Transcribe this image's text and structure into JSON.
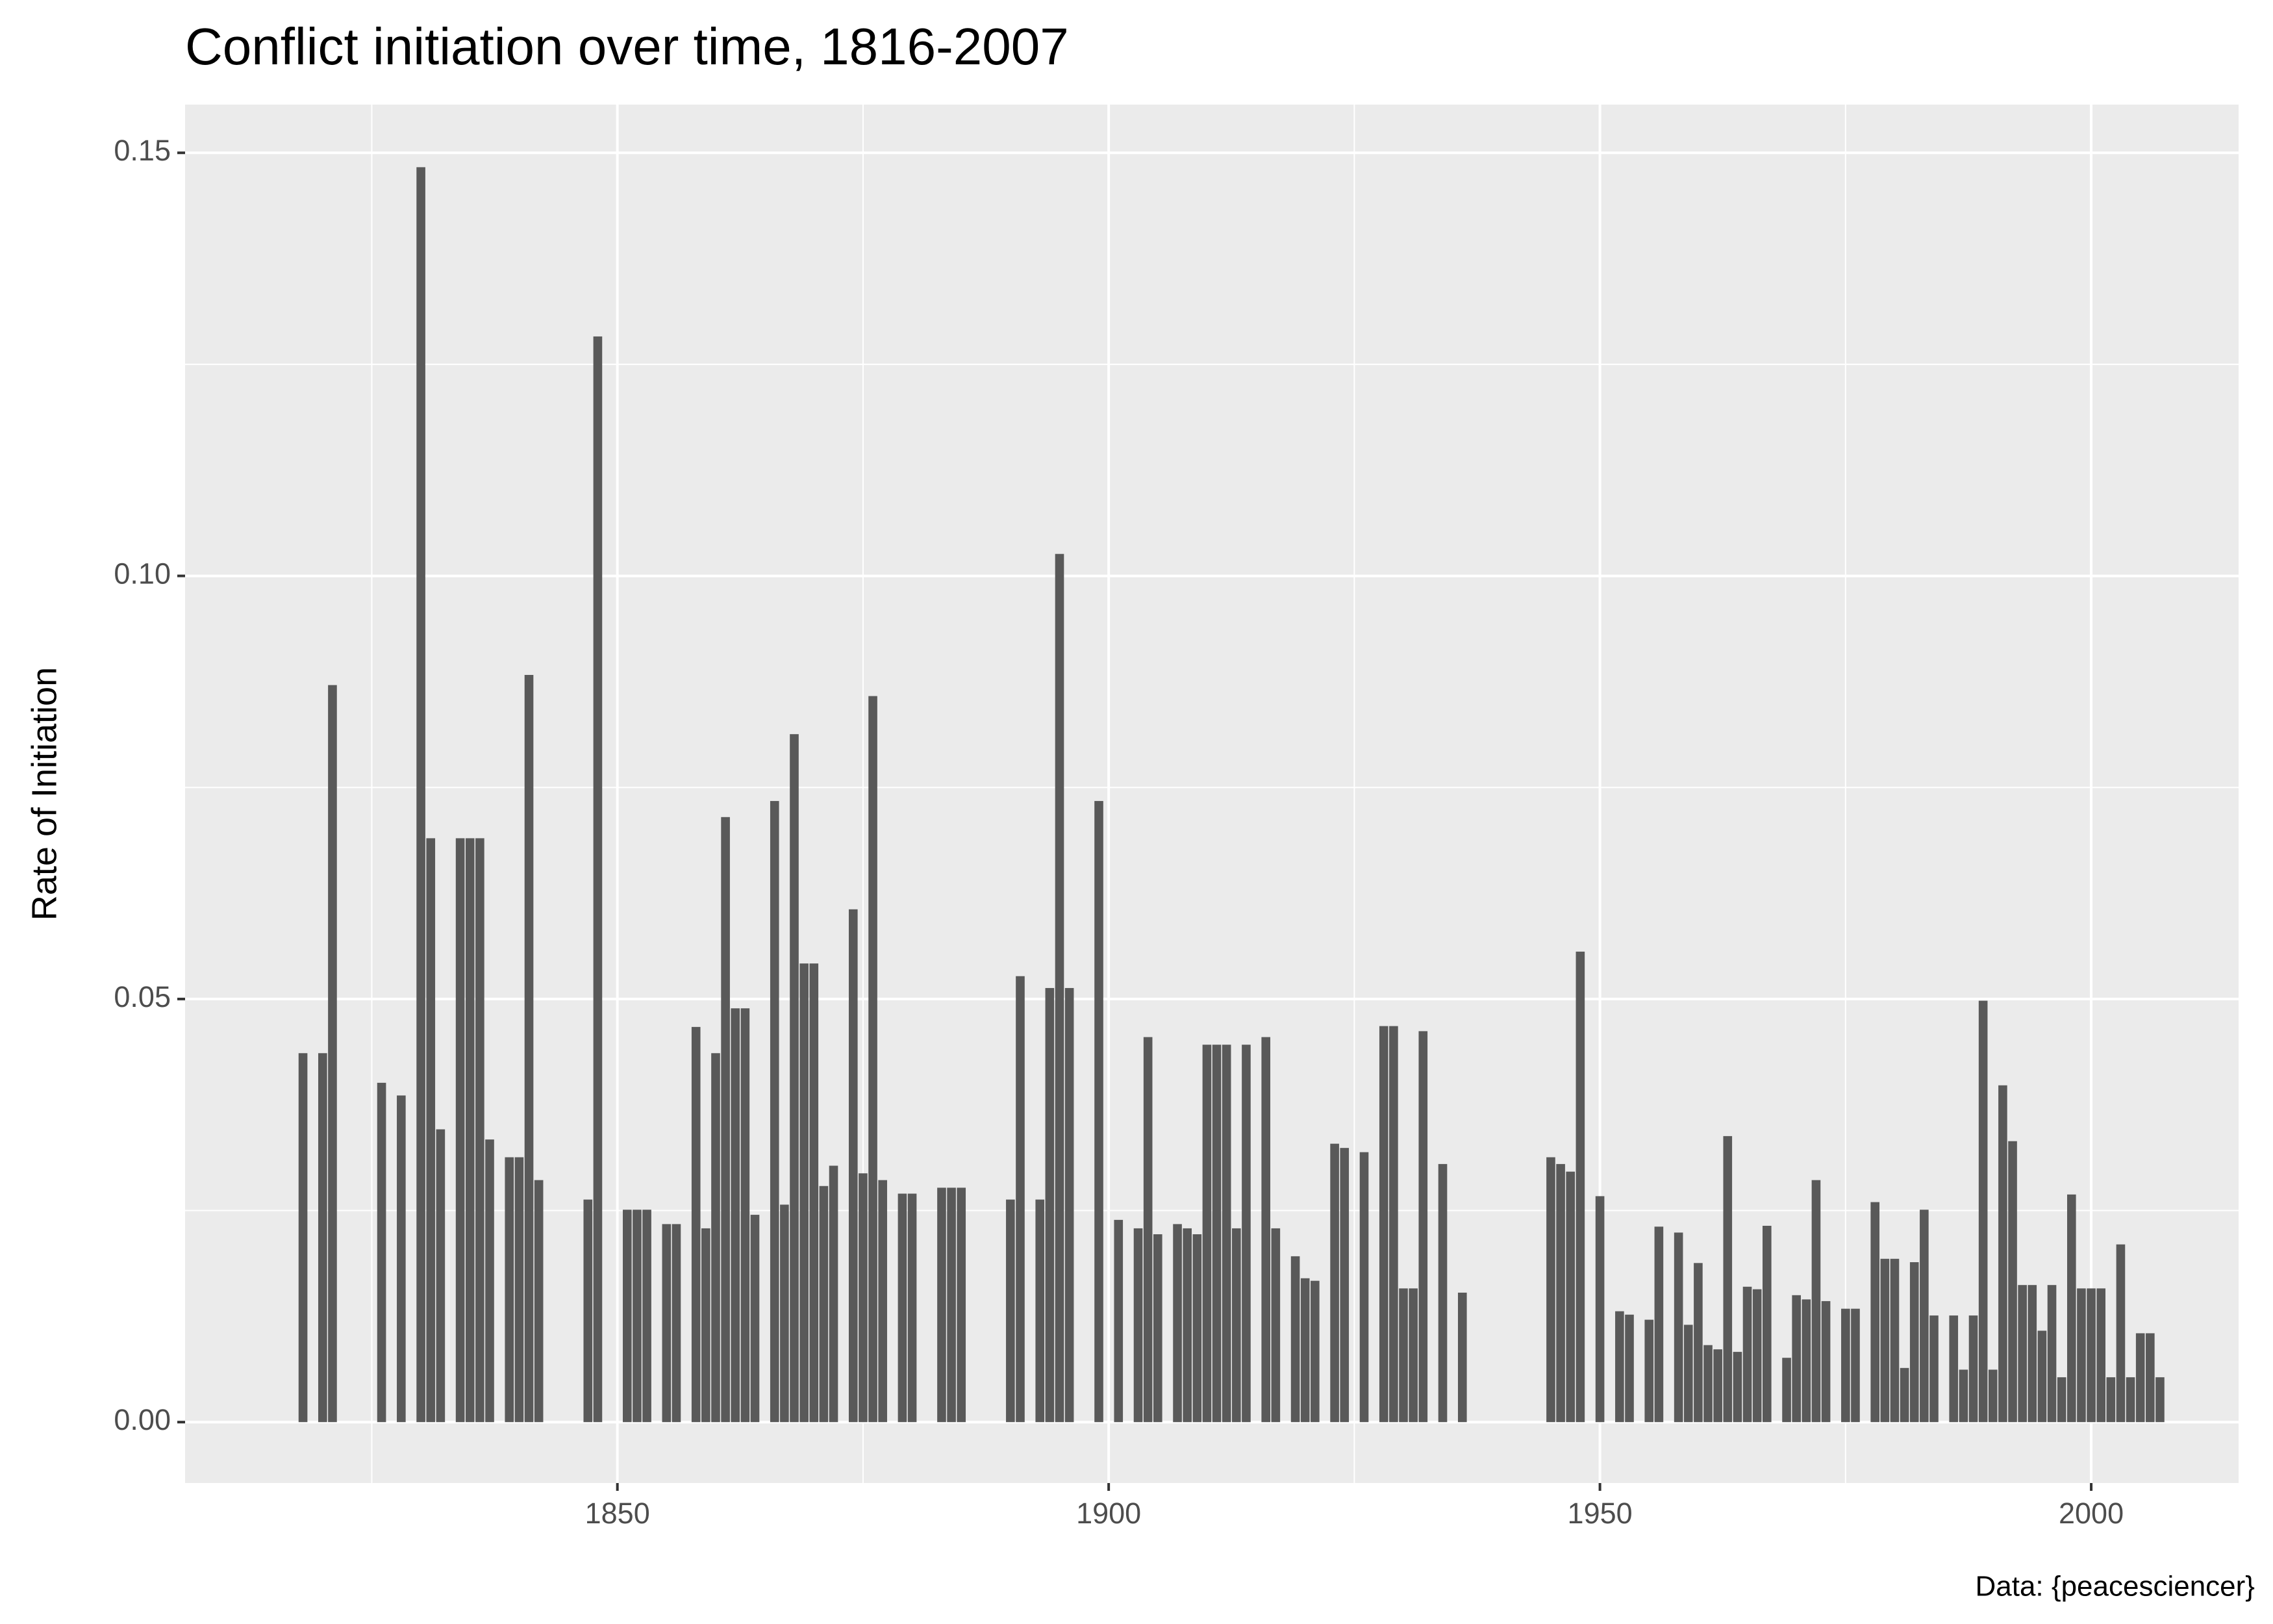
{
  "chart_data": {
    "type": "bar",
    "title": "Conflict initiation over time, 1816-2007",
    "y_label": "Rate of Initiation",
    "caption": "Data: {peacesciencer}",
    "color": "#595959",
    "background": "#ebebeb",
    "grid": true,
    "x": [
      1818,
      1820,
      1821,
      1826,
      1828,
      1830,
      1831,
      1832,
      1834,
      1835,
      1836,
      1837,
      1839,
      1840,
      1841,
      1842,
      1847,
      1848,
      1851,
      1852,
      1853,
      1855,
      1856,
      1858,
      1859,
      1860,
      1861,
      1862,
      1863,
      1864,
      1866,
      1867,
      1868,
      1869,
      1870,
      1871,
      1872,
      1874,
      1875,
      1876,
      1877,
      1879,
      1880,
      1883,
      1884,
      1885,
      1890,
      1891,
      1893,
      1894,
      1895,
      1896,
      1899,
      1901,
      1903,
      1904,
      1905,
      1907,
      1908,
      1909,
      1910,
      1911,
      1912,
      1913,
      1914,
      1916,
      1917,
      1919,
      1920,
      1921,
      1923,
      1924,
      1926,
      1928,
      1929,
      1930,
      1931,
      1932,
      1934,
      1936,
      1945,
      1946,
      1947,
      1948,
      1950,
      1952,
      1953,
      1955,
      1956,
      1958,
      1959,
      1960,
      1961,
      1962,
      1963,
      1964,
      1965,
      1966,
      1967,
      1969,
      1970,
      1971,
      1972,
      1973,
      1975,
      1976,
      1978,
      1979,
      1980,
      1981,
      1982,
      1983,
      1984,
      1986,
      1987,
      1988,
      1989,
      1990,
      1991,
      1992,
      1993,
      1994,
      1995,
      1996,
      1997,
      1998,
      1999,
      2000,
      2001,
      2002,
      2003,
      2004,
      2005,
      2006,
      2007
    ],
    "values": [
      0.0436,
      0.0436,
      0.0871,
      0.0401,
      0.0386,
      0.1483,
      0.069,
      0.0346,
      0.069,
      0.069,
      0.069,
      0.0334,
      0.0313,
      0.0313,
      0.0883,
      0.0286,
      0.0263,
      0.1283,
      0.0251,
      0.0251,
      0.0251,
      0.0234,
      0.0234,
      0.0467,
      0.0229,
      0.0436,
      0.0715,
      0.0489,
      0.0489,
      0.0245,
      0.0734,
      0.0257,
      0.0813,
      0.0542,
      0.0542,
      0.0279,
      0.0303,
      0.0606,
      0.0294,
      0.0858,
      0.0286,
      0.027,
      0.027,
      0.0277,
      0.0277,
      0.0277,
      0.0263,
      0.0527,
      0.0263,
      0.0513,
      0.1026,
      0.0513,
      0.0734,
      0.0239,
      0.0229,
      0.0455,
      0.0222,
      0.0234,
      0.0229,
      0.0222,
      0.0446,
      0.0446,
      0.0446,
      0.0229,
      0.0446,
      0.0455,
      0.0229,
      0.0196,
      0.017,
      0.0167,
      0.0329,
      0.0324,
      0.0319,
      0.0468,
      0.0468,
      0.0158,
      0.0158,
      0.0462,
      0.0305,
      0.0153,
      0.0313,
      0.0305,
      0.0296,
      0.0556,
      0.0267,
      0.0131,
      0.0127,
      0.0121,
      0.0231,
      0.0224,
      0.0115,
      0.0188,
      0.0091,
      0.0086,
      0.0338,
      0.0083,
      0.016,
      0.0157,
      0.0232,
      0.0076,
      0.015,
      0.0145,
      0.0286,
      0.0143,
      0.0134,
      0.0134,
      0.026,
      0.0193,
      0.0193,
      0.0064,
      0.0189,
      0.0251,
      0.0126,
      0.0126,
      0.0062,
      0.0126,
      0.0498,
      0.0062,
      0.0398,
      0.0332,
      0.0162,
      0.0162,
      0.0108,
      0.0162,
      0.0053,
      0.0269,
      0.0158,
      0.0158,
      0.0158,
      0.0053,
      0.021,
      0.0053,
      0.0105,
      0.0105,
      0.0053
    ],
    "xlim": [
      1806,
      2015
    ],
    "ylim": [
      -0.0072,
      0.1557
    ],
    "xticks": [
      1850,
      1900,
      1950,
      2000
    ],
    "x_minor_ticks": [
      1825,
      1875,
      1925,
      1975
    ],
    "yticks": [
      {
        "value": 0,
        "label": "0.00"
      },
      {
        "value": 0.05,
        "label": "0.05"
      },
      {
        "value": 0.1,
        "label": "0.10"
      },
      {
        "value": 0.15,
        "label": "0.15"
      }
    ],
    "y_minor_ticks": [
      0.025,
      0.075,
      0.125
    ]
  }
}
